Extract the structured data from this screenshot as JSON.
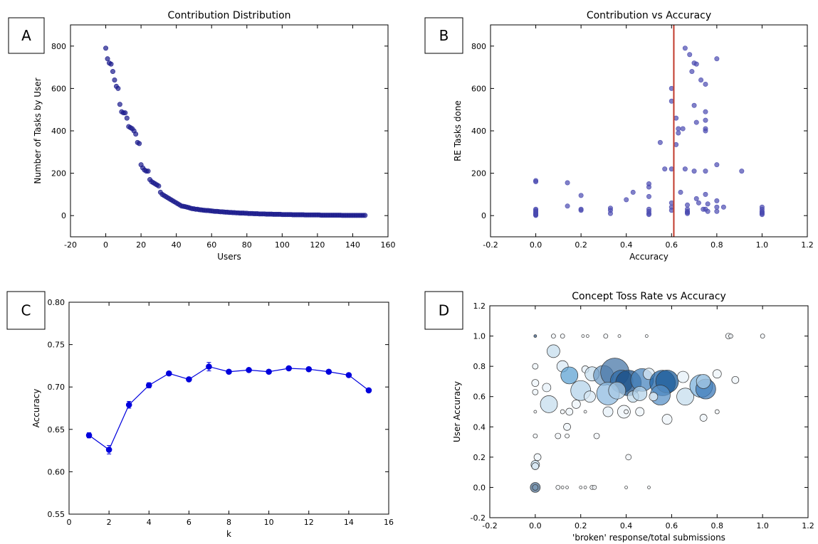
{
  "chart_data": [
    {
      "panel": "A",
      "type": "scatter",
      "title": "Contribution Distribution",
      "xlabel": "Users",
      "ylabel": "Number of Tasks by User",
      "xlim": [
        -20,
        160
      ],
      "ylim": [
        -100,
        900
      ],
      "xticks": [
        -20,
        0,
        20,
        40,
        60,
        80,
        100,
        120,
        140,
        160
      ],
      "yticks": [
        0,
        200,
        400,
        600,
        800
      ],
      "grid": false,
      "color": "#1a1a8c",
      "x": [
        0,
        1,
        2,
        3,
        4,
        5,
        6,
        7,
        8,
        9,
        10,
        11,
        12,
        13,
        14,
        15,
        16,
        17,
        18,
        19,
        20,
        21,
        22,
        23,
        24,
        25,
        26,
        27,
        28,
        29,
        30,
        31,
        32,
        33,
        34,
        35,
        36,
        37,
        38,
        39,
        40,
        41,
        42,
        43,
        44,
        45,
        46,
        47,
        48,
        49,
        50,
        51,
        52,
        53,
        54,
        55,
        56,
        57,
        58,
        59,
        60,
        61,
        62,
        63,
        64,
        65,
        66,
        67,
        68,
        69,
        70,
        71,
        72,
        73,
        74,
        75,
        76,
        77,
        78,
        79,
        80,
        81,
        82,
        83,
        84,
        85,
        86,
        87,
        88,
        89,
        90,
        91,
        92,
        93,
        94,
        95,
        96,
        97,
        98,
        99,
        100,
        101,
        102,
        103,
        104,
        105,
        106,
        107,
        108,
        109,
        110,
        111,
        112,
        113,
        114,
        115,
        116,
        117,
        118,
        119,
        120,
        121,
        122,
        123,
        124,
        125,
        126,
        127,
        128,
        129,
        130,
        131,
        132,
        133,
        134,
        135,
        136,
        137,
        138,
        139,
        140,
        141,
        142,
        143,
        144,
        145,
        146,
        147
      ],
      "y": [
        790,
        740,
        720,
        715,
        680,
        640,
        610,
        600,
        525,
        490,
        485,
        485,
        460,
        420,
        415,
        410,
        400,
        385,
        345,
        340,
        240,
        225,
        215,
        210,
        210,
        170,
        160,
        155,
        150,
        145,
        140,
        110,
        100,
        95,
        90,
        85,
        80,
        75,
        70,
        65,
        60,
        55,
        50,
        45,
        44,
        42,
        40,
        38,
        35,
        33,
        32,
        30,
        30,
        28,
        27,
        26,
        25,
        24,
        24,
        23,
        22,
        21,
        20,
        20,
        19,
        18,
        18,
        17,
        16,
        16,
        15,
        15,
        14,
        14,
        13,
        13,
        12,
        12,
        12,
        11,
        11,
        10,
        10,
        10,
        9,
        9,
        9,
        8,
        8,
        8,
        8,
        7,
        7,
        7,
        7,
        6,
        6,
        6,
        6,
        6,
        5,
        5,
        5,
        5,
        5,
        5,
        4,
        4,
        4,
        4,
        4,
        4,
        4,
        3,
        3,
        3,
        3,
        3,
        3,
        3,
        3,
        3,
        2,
        2,
        2,
        2,
        2,
        2,
        2,
        2,
        2,
        2,
        2,
        2,
        1,
        1,
        1,
        1,
        1,
        1,
        1,
        1,
        1,
        1,
        1,
        1,
        1,
        1
      ]
    },
    {
      "panel": "B",
      "type": "scatter",
      "title": "Contribution vs Accuracy",
      "xlabel": "Accuracy",
      "ylabel": "RE Tasks done",
      "xlim": [
        -0.2,
        1.2
      ],
      "ylim": [
        -100,
        900
      ],
      "xticks": [
        -0.2,
        0.0,
        0.2,
        0.4,
        0.6,
        0.8,
        1.0,
        1.2
      ],
      "yticks": [
        0,
        200,
        400,
        600,
        800
      ],
      "grid": false,
      "color": "#4a4ab0",
      "vline": {
        "x": 0.61,
        "color": "#c0392b"
      },
      "x": [
        0.0,
        0.0,
        0.0,
        0.0,
        0.0,
        0.0,
        0.0,
        0.0,
        0.0,
        0.0,
        0.0,
        0.14,
        0.14,
        0.2,
        0.2,
        0.2,
        0.33,
        0.33,
        0.33,
        0.4,
        0.43,
        0.5,
        0.5,
        0.5,
        0.5,
        0.5,
        0.5,
        0.5,
        0.55,
        0.57,
        0.6,
        0.6,
        0.6,
        0.6,
        0.6,
        0.6,
        0.62,
        0.62,
        0.63,
        0.63,
        0.64,
        0.65,
        0.66,
        0.66,
        0.67,
        0.67,
        0.67,
        0.67,
        0.67,
        0.68,
        0.69,
        0.7,
        0.7,
        0.7,
        0.71,
        0.71,
        0.71,
        0.72,
        0.73,
        0.74,
        0.75,
        0.75,
        0.75,
        0.75,
        0.75,
        0.75,
        0.75,
        0.75,
        0.76,
        0.76,
        0.8,
        0.8,
        0.8,
        0.8,
        0.8,
        0.83,
        0.91,
        1.0,
        1.0,
        1.0,
        1.0,
        1.0,
        1.0
      ],
      "y": [
        165,
        160,
        30,
        25,
        20,
        15,
        10,
        8,
        5,
        3,
        1,
        155,
        45,
        95,
        30,
        25,
        35,
        25,
        10,
        75,
        110,
        150,
        135,
        90,
        30,
        20,
        10,
        5,
        345,
        220,
        600,
        540,
        220,
        60,
        40,
        25,
        460,
        335,
        390,
        410,
        110,
        410,
        790,
        220,
        50,
        30,
        20,
        15,
        10,
        760,
        680,
        720,
        520,
        210,
        715,
        440,
        80,
        60,
        640,
        30,
        620,
        490,
        450,
        410,
        400,
        210,
        100,
        30,
        55,
        20,
        740,
        240,
        70,
        40,
        20,
        40,
        210,
        40,
        30,
        20,
        15,
        10,
        5
      ]
    },
    {
      "panel": "C",
      "type": "line",
      "title": "",
      "xlabel": "k",
      "ylabel": "Accuracy",
      "xlim": [
        0,
        16
      ],
      "ylim": [
        0.55,
        0.8
      ],
      "xticks": [
        0,
        2,
        4,
        6,
        8,
        10,
        12,
        14,
        16
      ],
      "yticks": [
        0.55,
        0.6,
        0.65,
        0.7,
        0.75,
        0.8
      ],
      "grid": false,
      "color": "#0000dd",
      "x": [
        1,
        2,
        3,
        4,
        5,
        6,
        7,
        8,
        9,
        10,
        11,
        12,
        13,
        14,
        15
      ],
      "y": [
        0.643,
        0.626,
        0.679,
        0.702,
        0.716,
        0.709,
        0.724,
        0.718,
        0.72,
        0.718,
        0.722,
        0.721,
        0.718,
        0.714,
        0.696
      ],
      "yerr": [
        0.003,
        0.005,
        0.004,
        0.003,
        0.002,
        0.002,
        0.005,
        0.002,
        0.002,
        0.002,
        0.002,
        0.002,
        0.002,
        0.002,
        0.002
      ]
    },
    {
      "panel": "D",
      "type": "scatter",
      "title": "Concept Toss Rate vs Accuracy",
      "xlabel": "'broken' response/total submissions",
      "ylabel": "User Accuracy",
      "xlim": [
        -0.2,
        1.2
      ],
      "ylim": [
        -0.2,
        1.2
      ],
      "xticks": [
        -0.2,
        0.0,
        0.2,
        0.4,
        0.6,
        0.8,
        1.0,
        1.2
      ],
      "yticks": [
        -0.2,
        0.0,
        0.2,
        0.4,
        0.6,
        0.8,
        1.0,
        1.2
      ],
      "grid": false,
      "points": [
        {
          "x": 0.0,
          "y": 1.0,
          "s": 2,
          "c": "#3a5a80"
        },
        {
          "x": 0.08,
          "y": 1.0,
          "s": 3,
          "c": "#f0f4f8"
        },
        {
          "x": 0.12,
          "y": 1.0,
          "s": 3,
          "c": "#f0f4f8"
        },
        {
          "x": 0.21,
          "y": 1.0,
          "s": 2,
          "c": "#f0f4f8"
        },
        {
          "x": 0.23,
          "y": 1.0,
          "s": 2,
          "c": "#f0f4f8"
        },
        {
          "x": 0.31,
          "y": 1.0,
          "s": 3,
          "c": "#f0f4f8"
        },
        {
          "x": 0.37,
          "y": 1.0,
          "s": 2,
          "c": "#f0f4f8"
        },
        {
          "x": 0.49,
          "y": 1.0,
          "s": 2,
          "c": "#f0f4f8"
        },
        {
          "x": 0.85,
          "y": 1.0,
          "s": 4,
          "c": "#f0f4f8"
        },
        {
          "x": 0.86,
          "y": 1.0,
          "s": 3,
          "c": "#f0f4f8"
        },
        {
          "x": 1.0,
          "y": 1.0,
          "s": 3,
          "c": "#f0f4f8"
        },
        {
          "x": 0.08,
          "y": 0.9,
          "s": 9,
          "c": "#c6ddee"
        },
        {
          "x": 0.0,
          "y": 0.8,
          "s": 4,
          "c": "#eef4fa"
        },
        {
          "x": 0.12,
          "y": 0.8,
          "s": 8,
          "c": "#d8e8f4"
        },
        {
          "x": 0.15,
          "y": 0.74,
          "s": 12,
          "c": "#5fa3d3"
        },
        {
          "x": 0.22,
          "y": 0.78,
          "s": 5,
          "c": "#e6f0f8"
        },
        {
          "x": 0.25,
          "y": 0.75,
          "s": 10,
          "c": "#c6ddee"
        },
        {
          "x": 0.3,
          "y": 0.74,
          "s": 14,
          "c": "#6f9cc5"
        },
        {
          "x": 0.35,
          "y": 0.76,
          "s": 20,
          "c": "#4a78a8"
        },
        {
          "x": 0.38,
          "y": 0.7,
          "s": 16,
          "c": "#2d6aa5"
        },
        {
          "x": 0.41,
          "y": 0.69,
          "s": 18,
          "c": "#1b4f86"
        },
        {
          "x": 0.47,
          "y": 0.71,
          "s": 16,
          "c": "#4a86bf"
        },
        {
          "x": 0.5,
          "y": 0.75,
          "s": 8,
          "c": "#d8e8f4"
        },
        {
          "x": 0.56,
          "y": 0.69,
          "s": 18,
          "c": "#2166a8"
        },
        {
          "x": 0.58,
          "y": 0.7,
          "s": 16,
          "c": "#1f5e99"
        },
        {
          "x": 0.55,
          "y": 0.61,
          "s": 14,
          "c": "#5b93c8"
        },
        {
          "x": 0.65,
          "y": 0.73,
          "s": 8,
          "c": "#e6f0f8"
        },
        {
          "x": 0.66,
          "y": 0.6,
          "s": 12,
          "c": "#c6ddee"
        },
        {
          "x": 0.73,
          "y": 0.67,
          "s": 16,
          "c": "#7cb1dc"
        },
        {
          "x": 0.75,
          "y": 0.65,
          "s": 14,
          "c": "#3d7ab8"
        },
        {
          "x": 0.74,
          "y": 0.7,
          "s": 10,
          "c": "#a9cbe6"
        },
        {
          "x": 0.8,
          "y": 0.75,
          "s": 6,
          "c": "#eef4fa"
        },
        {
          "x": 0.88,
          "y": 0.71,
          "s": 5,
          "c": "#eef4fa"
        },
        {
          "x": 0.0,
          "y": 0.69,
          "s": 5,
          "c": "#eef4fa"
        },
        {
          "x": 0.0,
          "y": 0.63,
          "s": 4,
          "c": "#eef4fa"
        },
        {
          "x": 0.05,
          "y": 0.66,
          "s": 6,
          "c": "#e6f0f8"
        },
        {
          "x": 0.2,
          "y": 0.64,
          "s": 14,
          "c": "#b4d3ea"
        },
        {
          "x": 0.24,
          "y": 0.6,
          "s": 8,
          "c": "#d8e8f4"
        },
        {
          "x": 0.32,
          "y": 0.62,
          "s": 16,
          "c": "#8fbbe0"
        },
        {
          "x": 0.36,
          "y": 0.64,
          "s": 12,
          "c": "#a9cbe6"
        },
        {
          "x": 0.43,
          "y": 0.6,
          "s": 8,
          "c": "#c6ddee"
        },
        {
          "x": 0.46,
          "y": 0.62,
          "s": 10,
          "c": "#b4d3ea"
        },
        {
          "x": 0.52,
          "y": 0.6,
          "s": 6,
          "c": "#e6f0f8"
        },
        {
          "x": 0.06,
          "y": 0.55,
          "s": 12,
          "c": "#c6ddee"
        },
        {
          "x": 0.15,
          "y": 0.5,
          "s": 5,
          "c": "#eef4fa"
        },
        {
          "x": 0.18,
          "y": 0.55,
          "s": 6,
          "c": "#eef4fa"
        },
        {
          "x": 0.32,
          "y": 0.5,
          "s": 7,
          "c": "#e6f0f8"
        },
        {
          "x": 0.39,
          "y": 0.5,
          "s": 9,
          "c": "#eef4fa"
        },
        {
          "x": 0.46,
          "y": 0.5,
          "s": 6,
          "c": "#eef4fa"
        },
        {
          "x": 0.0,
          "y": 0.5,
          "s": 2,
          "c": "#f0f4f8"
        },
        {
          "x": 0.12,
          "y": 0.5,
          "s": 3,
          "c": "#f0f4f8"
        },
        {
          "x": 0.22,
          "y": 0.5,
          "s": 2,
          "c": "#f0f4f8"
        },
        {
          "x": 0.4,
          "y": 0.5,
          "s": 3,
          "c": "#f0f4f8"
        },
        {
          "x": 0.8,
          "y": 0.5,
          "s": 3,
          "c": "#f0f4f8"
        },
        {
          "x": 0.58,
          "y": 0.45,
          "s": 7,
          "c": "#eef4fa"
        },
        {
          "x": 0.74,
          "y": 0.46,
          "s": 5,
          "c": "#eef4fa"
        },
        {
          "x": 0.14,
          "y": 0.4,
          "s": 5,
          "c": "#eef4fa"
        },
        {
          "x": 0.0,
          "y": 0.34,
          "s": 3,
          "c": "#f0f4f8"
        },
        {
          "x": 0.1,
          "y": 0.34,
          "s": 4,
          "c": "#f0f4f8"
        },
        {
          "x": 0.14,
          "y": 0.34,
          "s": 3,
          "c": "#f0f4f8"
        },
        {
          "x": 0.27,
          "y": 0.34,
          "s": 4,
          "c": "#f0f4f8"
        },
        {
          "x": 0.41,
          "y": 0.2,
          "s": 4,
          "c": "#f0f4f8"
        },
        {
          "x": 0.01,
          "y": 0.2,
          "s": 5,
          "c": "#eef4fa"
        },
        {
          "x": 0.0,
          "y": 0.15,
          "s": 6,
          "c": "#c6ddee"
        },
        {
          "x": 0.0,
          "y": 0.14,
          "s": 5,
          "c": "#dbe8f3"
        },
        {
          "x": 0.0,
          "y": 0.0,
          "s": 7,
          "c": "#4f6f8f"
        },
        {
          "x": 0.0,
          "y": 0.0,
          "s": 4,
          "c": "#7a9ab8"
        },
        {
          "x": 0.1,
          "y": 0.0,
          "s": 3,
          "c": "#f0f4f8"
        },
        {
          "x": 0.12,
          "y": 0.0,
          "s": 2,
          "c": "#f0f4f8"
        },
        {
          "x": 0.14,
          "y": 0.0,
          "s": 2,
          "c": "#f0f4f8"
        },
        {
          "x": 0.2,
          "y": 0.0,
          "s": 2,
          "c": "#f0f4f8"
        },
        {
          "x": 0.22,
          "y": 0.0,
          "s": 2,
          "c": "#f0f4f8"
        },
        {
          "x": 0.25,
          "y": 0.0,
          "s": 3,
          "c": "#f0f4f8"
        },
        {
          "x": 0.26,
          "y": 0.0,
          "s": 3,
          "c": "#f0f4f8"
        },
        {
          "x": 0.4,
          "y": 0.0,
          "s": 2,
          "c": "#f0f4f8"
        },
        {
          "x": 0.5,
          "y": 0.0,
          "s": 2,
          "c": "#f0f4f8"
        }
      ]
    }
  ]
}
